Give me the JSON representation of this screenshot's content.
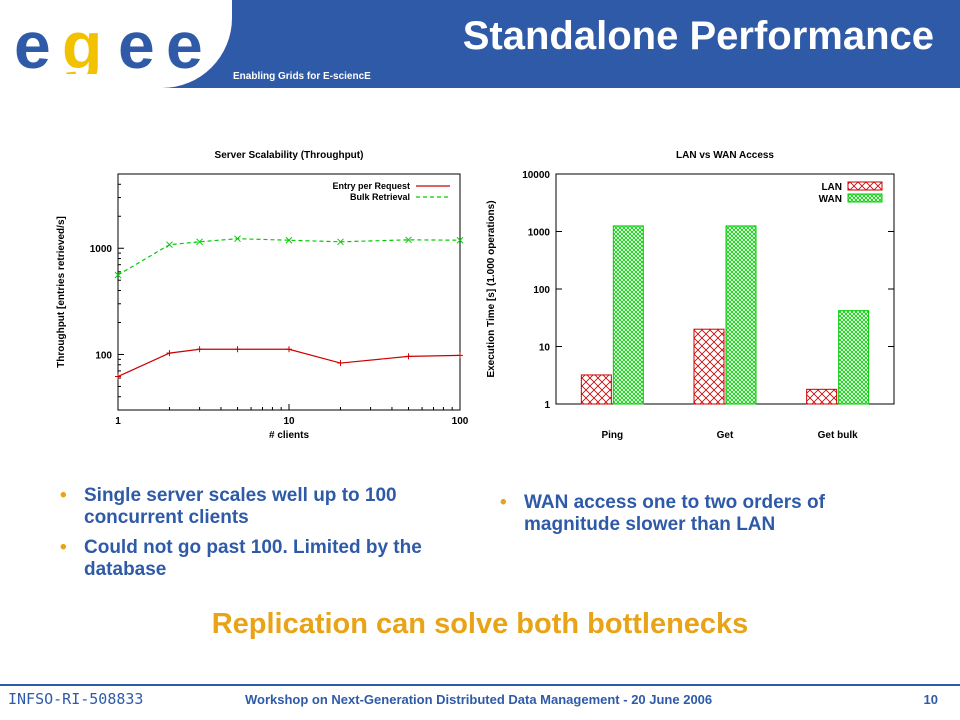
{
  "header": {
    "logo_text": "egee",
    "tagline": "Enabling Grids for E-sciencE",
    "title": "Standalone Performance"
  },
  "colors": {
    "brand_blue": "#2e5aa8",
    "accent_orange": "#e8a317",
    "series_red": "#cc0000",
    "series_green": "#00cc00"
  },
  "chart_data": [
    {
      "type": "line",
      "title": "Server Scalability (Throughput)",
      "xlabel": "# clients",
      "ylabel": "Throughput [entries retrieved/s]",
      "x_scale": "log",
      "y_scale": "log",
      "xlim": [
        1,
        100
      ],
      "ylim": [
        30,
        5000
      ],
      "x_ticks": [
        "1",
        "10",
        "100"
      ],
      "y_ticks": [
        "100",
        "1000"
      ],
      "legend_position": "top-right",
      "series": [
        {
          "name": "Entry per Request",
          "color": "#cc0000",
          "x": [
            1,
            2,
            3,
            5,
            10,
            20,
            50,
            100
          ],
          "y": [
            62,
            103,
            112,
            112,
            112,
            83,
            96,
            98
          ]
        },
        {
          "name": "Bulk Retrieval",
          "color": "#00cc00",
          "x": [
            1,
            2,
            3,
            5,
            10,
            20,
            50,
            100
          ],
          "y": [
            560,
            1080,
            1150,
            1230,
            1190,
            1150,
            1200,
            1190
          ]
        }
      ]
    },
    {
      "type": "bar",
      "title": "LAN vs WAN Access",
      "ylabel": "Execution Time [s] (1.000 operations)",
      "y_scale": "log",
      "ylim": [
        1,
        10000
      ],
      "y_ticks": [
        "1",
        "10",
        "100",
        "1000",
        "10000"
      ],
      "categories": [
        "Ping",
        "Get",
        "Get bulk"
      ],
      "legend_position": "top-right",
      "series": [
        {
          "name": "LAN",
          "color": "#cc0000",
          "values": [
            3.2,
            20,
            1.8
          ]
        },
        {
          "name": "WAN",
          "color": "#00cc00",
          "values": [
            1250,
            1250,
            42
          ]
        }
      ]
    }
  ],
  "bullets_left": [
    "Single server scales well up to 100 concurrent clients",
    "Could not go past 100. Limited by the database"
  ],
  "bullets_right": [
    "WAN access one to two orders of magnitude slower than LAN"
  ],
  "bullet_symbol": "•",
  "conclusion": "Replication can solve both bottlenecks",
  "footer": {
    "left": "INFSO-RI-508833",
    "center": "Workshop on Next-Generation Distributed Data Management - 20 June 2006",
    "page": "10"
  }
}
